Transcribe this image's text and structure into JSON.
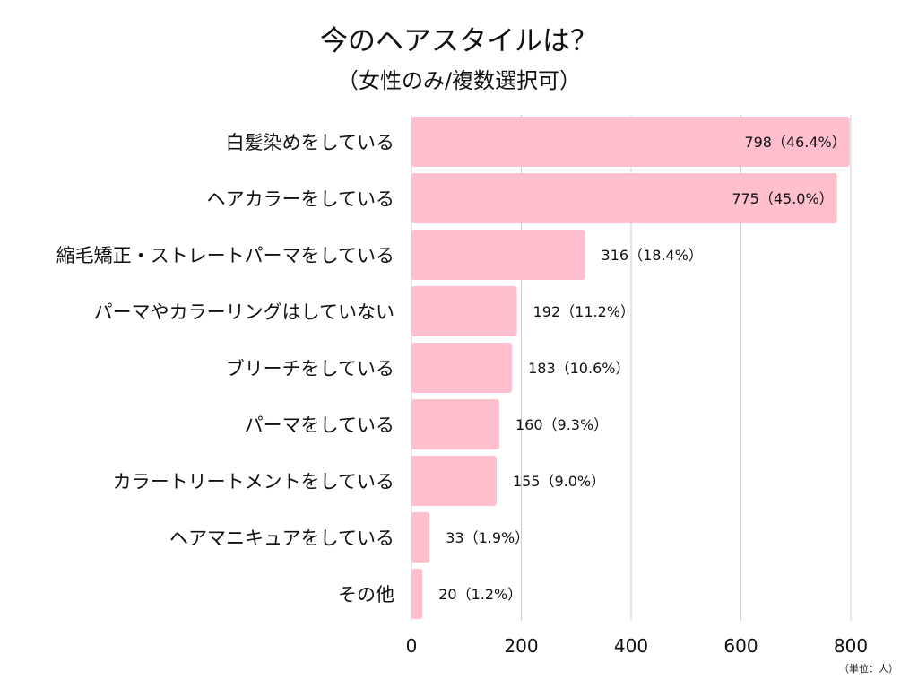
{
  "chart_data": {
    "type": "bar",
    "orientation": "horizontal",
    "title": "今のヘアスタイルは？",
    "subtitle": "（女性のみ/複数選択可）",
    "unit_note": "（単位：人）",
    "categories": [
      "白髪染めをしている",
      "ヘアカラーをしている",
      "縮毛矯正・ストレートパーマをしている",
      "パーマやカラーリングはしていない",
      "ブリーチをしている",
      "パーマをしている",
      "カラートリートメントをしている",
      "ヘアマニキュアをしている",
      "その他"
    ],
    "values": [
      798,
      775,
      316,
      192,
      183,
      160,
      155,
      33,
      20
    ],
    "data_labels": [
      "798（46.4%）",
      "775（45.0%）",
      "316（18.4%）",
      "192（11.2%）",
      "183（10.6%）",
      "160（9.3%）",
      "155（9.0%）",
      "33（1.9%）",
      "20（1.2%）"
    ],
    "xlim": [
      0,
      800
    ],
    "x_ticks": [
      0,
      200,
      400,
      600,
      800
    ],
    "x_tick_labels": [
      "0",
      "200",
      "400",
      "600",
      "800"
    ],
    "grid": "vertical",
    "legend": "none",
    "colors": {
      "bar": "#ffbfcc",
      "grid": "#cccccc",
      "text": "#111111"
    }
  }
}
